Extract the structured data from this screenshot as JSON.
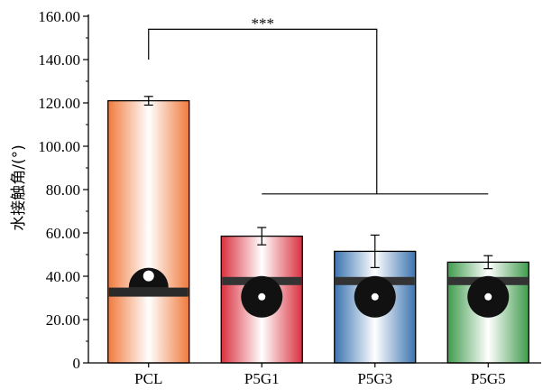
{
  "chart_data": {
    "type": "bar",
    "categories": [
      "PCL",
      "P5G1",
      "P5G3",
      "P5G5"
    ],
    "values": [
      121.0,
      58.5,
      51.5,
      46.5
    ],
    "errors": [
      2.0,
      4.0,
      7.5,
      3.0
    ],
    "colors": [
      "#f07a3c",
      "#d9303e",
      "#3a73b0",
      "#3f9b4c"
    ],
    "ylabel": "水接触角/(°)",
    "xlabel": "",
    "ylim": [
      0,
      160
    ],
    "yticks": [
      "0",
      "20.00",
      "40.00",
      "60.00",
      "80.00",
      "100.00",
      "120.00",
      "140.00",
      "160.00"
    ],
    "ytick_values": [
      0,
      20,
      40,
      60,
      80,
      100,
      120,
      140,
      160
    ],
    "significance": {
      "label": "***",
      "from": "PCL",
      "to": [
        "P5G1",
        "P5G3",
        "P5G5"
      ]
    },
    "droplet_insets": [
      "PCL",
      "P5G1",
      "P5G3",
      "P5G5"
    ]
  }
}
